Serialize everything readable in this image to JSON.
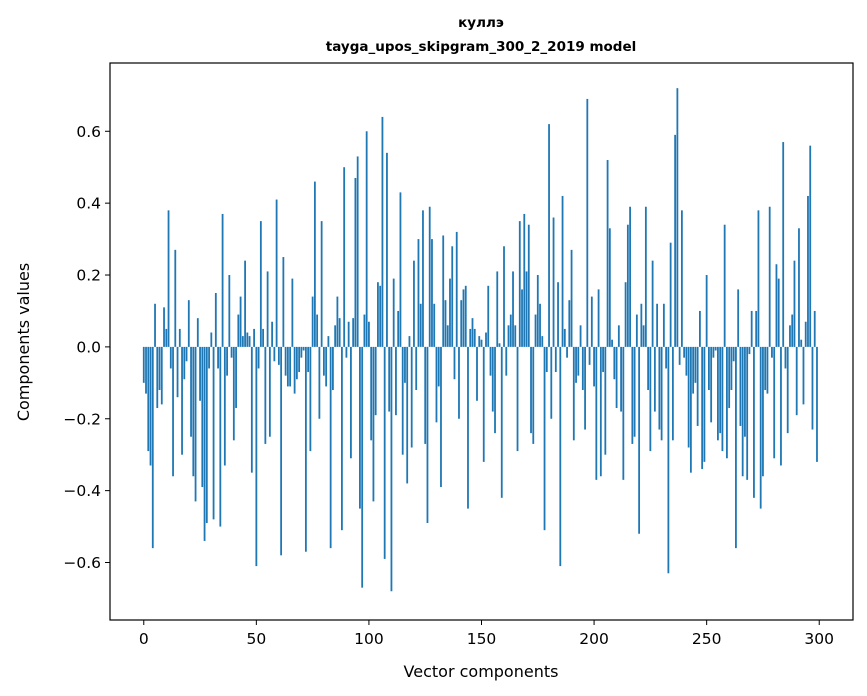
{
  "chart_data": {
    "type": "bar",
    "title": "куллэ",
    "subtitle": "tayga_upos_skipgram_300_2_2019 model",
    "xlabel": "Vector components",
    "ylabel": "Components values",
    "xlim": [
      -15,
      315
    ],
    "ylim": [
      -0.76,
      0.79
    ],
    "xticks": [
      0,
      50,
      100,
      150,
      200,
      250,
      300
    ],
    "xtick_labels": [
      "0",
      "50",
      "100",
      "150",
      "200",
      "250",
      "300"
    ],
    "yticks": [
      -0.6,
      -0.4,
      -0.2,
      0.0,
      0.2,
      0.4,
      0.6
    ],
    "ytick_labels": [
      "−0.6",
      "−0.4",
      "−0.2",
      "0.0",
      "0.2",
      "0.4",
      "0.6"
    ],
    "bar_color": "#1f77b4",
    "grid": false,
    "values": [
      -0.1,
      -0.13,
      -0.29,
      -0.33,
      -0.56,
      0.12,
      -0.17,
      -0.12,
      -0.16,
      0.11,
      0.05,
      0.38,
      -0.06,
      -0.36,
      0.27,
      -0.14,
      0.05,
      -0.3,
      -0.09,
      -0.04,
      0.13,
      -0.25,
      -0.36,
      -0.43,
      0.08,
      -0.15,
      -0.39,
      -0.54,
      -0.49,
      -0.06,
      0.04,
      -0.48,
      0.15,
      -0.06,
      -0.5,
      0.37,
      -0.33,
      -0.08,
      0.2,
      -0.03,
      -0.26,
      -0.17,
      0.09,
      0.14,
      0.03,
      0.24,
      0.04,
      0.03,
      -0.35,
      0.05,
      -0.61,
      -0.06,
      0.35,
      0.05,
      -0.27,
      0.21,
      -0.25,
      0.07,
      -0.04,
      0.41,
      -0.05,
      -0.58,
      0.25,
      -0.08,
      -0.11,
      -0.11,
      0.19,
      -0.13,
      -0.09,
      -0.07,
      -0.03,
      -0.01,
      -0.57,
      -0.07,
      -0.29,
      0.14,
      0.46,
      0.09,
      -0.2,
      0.35,
      -0.08,
      -0.11,
      0.03,
      -0.56,
      -0.12,
      0.06,
      0.14,
      0.08,
      -0.51,
      0.5,
      -0.03,
      0.07,
      -0.31,
      0.08,
      0.47,
      0.53,
      -0.45,
      -0.67,
      0.09,
      0.6,
      0.07,
      -0.26,
      -0.43,
      -0.19,
      0.18,
      0.17,
      0.64,
      -0.59,
      0.54,
      -0.18,
      -0.68,
      0.19,
      -0.19,
      0.1,
      0.43,
      -0.3,
      -0.1,
      -0.38,
      0.03,
      -0.28,
      0.24,
      -0.12,
      0.3,
      0.12,
      0.38,
      -0.27,
      -0.49,
      0.39,
      0.3,
      0.12,
      -0.21,
      -0.11,
      -0.39,
      0.31,
      0.13,
      0.06,
      0.19,
      0.28,
      -0.09,
      0.32,
      -0.2,
      0.13,
      0.16,
      0.17,
      -0.45,
      0.05,
      0.08,
      0.05,
      -0.15,
      0.03,
      0.02,
      -0.32,
      0.04,
      0.17,
      -0.08,
      -0.18,
      -0.24,
      0.21,
      0.01,
      -0.42,
      0.28,
      -0.08,
      0.06,
      0.09,
      0.21,
      0.06,
      -0.29,
      0.35,
      0.16,
      0.37,
      0.21,
      0.34,
      -0.24,
      -0.27,
      0.09,
      0.2,
      0.12,
      0.03,
      -0.51,
      -0.07,
      0.62,
      -0.2,
      0.36,
      -0.07,
      0.18,
      -0.61,
      0.42,
      0.05,
      -0.03,
      0.13,
      0.27,
      -0.26,
      -0.1,
      -0.08,
      0.06,
      -0.12,
      -0.23,
      0.69,
      -0.05,
      0.14,
      -0.11,
      -0.37,
      0.16,
      -0.36,
      -0.07,
      -0.3,
      0.52,
      0.33,
      0.02,
      -0.09,
      -0.17,
      0.06,
      -0.18,
      -0.37,
      0.18,
      0.34,
      0.39,
      -0.27,
      -0.25,
      0.09,
      -0.52,
      0.12,
      0.06,
      0.39,
      -0.12,
      -0.29,
      0.24,
      -0.18,
      0.12,
      -0.23,
      -0.26,
      0.12,
      -0.06,
      -0.63,
      0.29,
      -0.26,
      0.59,
      0.72,
      -0.05,
      0.38,
      -0.03,
      -0.08,
      -0.28,
      -0.35,
      -0.13,
      -0.1,
      -0.22,
      0.1,
      -0.34,
      -0.32,
      0.2,
      -0.12,
      -0.21,
      -0.03,
      -0.01,
      -0.26,
      -0.24,
      -0.29,
      0.34,
      -0.31,
      -0.17,
      -0.12,
      -0.04,
      -0.56,
      0.16,
      -0.22,
      -0.36,
      -0.25,
      -0.37,
      -0.02,
      0.1,
      -0.42,
      0.1,
      0.38,
      -0.45,
      -0.36,
      -0.12,
      -0.13,
      0.39,
      -0.03,
      -0.31,
      0.23,
      0.19,
      -0.33,
      0.57,
      -0.06,
      -0.24,
      0.06,
      0.09,
      0.24,
      -0.19,
      0.33,
      0.02,
      -0.16,
      0.07,
      0.42,
      0.56,
      -0.23,
      0.1,
      -0.32
    ]
  }
}
